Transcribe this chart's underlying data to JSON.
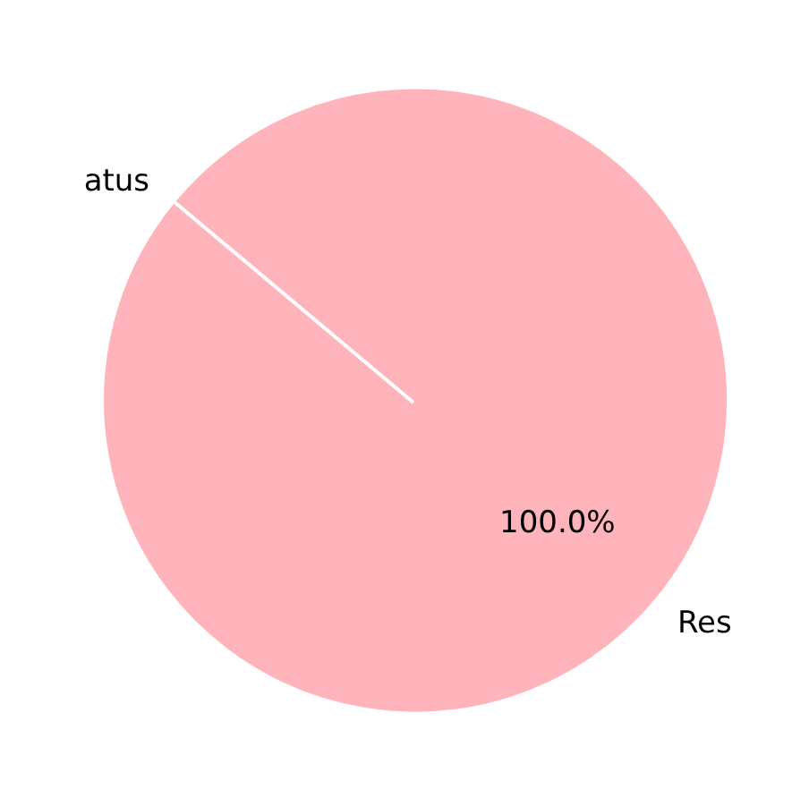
{
  "chart_data": {
    "type": "pie",
    "categories": [
      "atus",
      "Res"
    ],
    "values": [
      0,
      100
    ],
    "colors": [
      "#ffb3ba",
      "#ffb3ba"
    ],
    "value_labels": [
      null,
      "100.0%"
    ],
    "legend": false
  }
}
